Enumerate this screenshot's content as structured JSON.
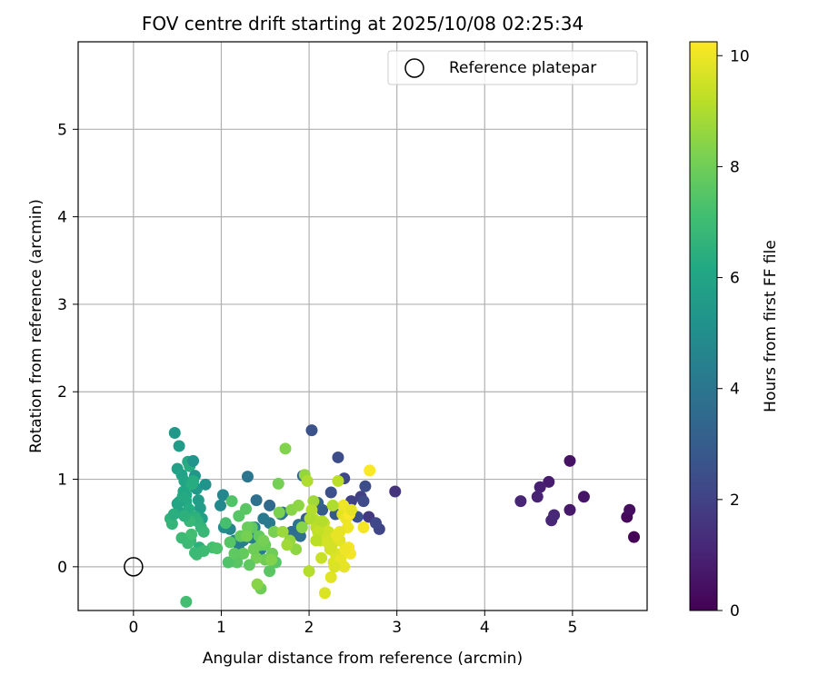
{
  "chart_data": {
    "type": "scatter",
    "title": "FOV centre drift starting at 2025/10/08 02:25:34",
    "xlabel": "Angular distance from reference (arcmin)",
    "ylabel": "Rotation from reference (arcmin)",
    "xlim": [
      -0.63,
      5.85
    ],
    "ylim": [
      -0.5,
      6.0
    ],
    "xticks": [
      0,
      1,
      2,
      3,
      4,
      5
    ],
    "yticks": [
      0,
      1,
      2,
      3,
      4,
      5
    ],
    "grid": true,
    "legend": {
      "placement": "top-right",
      "entries": [
        "Reference platepar"
      ]
    },
    "reference_point": {
      "label": "Reference platepar",
      "x": 0,
      "y": 0
    },
    "colorbar": {
      "label": "Hours from first FF file",
      "min": 0,
      "max": 10.25,
      "ticks": [
        0,
        2,
        4,
        6,
        8,
        10
      ],
      "colormap": "viridis"
    },
    "series": [
      {
        "name": "FOV centre drift",
        "x": [
          5.7,
          5.62,
          5.65,
          4.97,
          5.13,
          4.97,
          4.73,
          4.63,
          4.6,
          4.41,
          4.76,
          4.79,
          2.98,
          2.68,
          2.59,
          2.48,
          2.4,
          2.33,
          2.25,
          2.62,
          2.03,
          2.8,
          2.76,
          2.64,
          2.55,
          2.3,
          2.15,
          1.97,
          1.93,
          2.1,
          1.55,
          1.8,
          1.68,
          1.4,
          1.3,
          1.55,
          1.25,
          1.45,
          1.38,
          1.1,
          1.02,
          0.99,
          1.03,
          1.15,
          1.2,
          1.35,
          1.48,
          1.6,
          1.7,
          1.88,
          1.9,
          0.47,
          0.5,
          0.52,
          0.55,
          0.58,
          0.6,
          0.62,
          0.64,
          0.66,
          0.68,
          0.7,
          0.72,
          0.74,
          0.76,
          0.78,
          0.5,
          0.53,
          0.57,
          0.6,
          0.63,
          0.67,
          0.7,
          0.73,
          0.77,
          0.8,
          0.82,
          0.55,
          0.65,
          0.75,
          0.42,
          0.44,
          0.62,
          0.72,
          0.6,
          0.68,
          0.64,
          0.9,
          0.95,
          0.8,
          0.7,
          0.66,
          0.58,
          0.52,
          0.56,
          0.46,
          1.05,
          1.12,
          1.2,
          1.28,
          1.35,
          1.43,
          1.5,
          1.58,
          1.65,
          1.73,
          1.8,
          1.88,
          1.95,
          2.05,
          1.62,
          1.55,
          1.25,
          1.45,
          1.5,
          1.4,
          1.32,
          1.18,
          1.08,
          1.6,
          1.48,
          1.37,
          1.7,
          1.78,
          1.85,
          1.92,
          1.15,
          1.22,
          1.3,
          1.45,
          1.66,
          1.57,
          1.41,
          1.29,
          1.1,
          1.75,
          1.98,
          2.03,
          2.08,
          2.13,
          2.17,
          2.22,
          2.26,
          2.3,
          2.35,
          2.4,
          2.44,
          2.47,
          2.38,
          2.28,
          2.2,
          2.14,
          2.05,
          2.0,
          2.1,
          2.24,
          2.33,
          2.42,
          2.45,
          2.36,
          2.18,
          2.25,
          2.31,
          2.39,
          2.46,
          2.21,
          2.29,
          2.69,
          2.62,
          2.35,
          2.27,
          2.15,
          2.08,
          2.01,
          2.48,
          2.41
        ],
        "y": [
          0.34,
          0.57,
          0.65,
          1.21,
          0.8,
          0.65,
          0.97,
          0.91,
          0.8,
          0.75,
          0.53,
          0.59,
          0.86,
          0.57,
          0.8,
          0.75,
          1.01,
          1.25,
          0.85,
          0.75,
          1.56,
          0.43,
          0.5,
          0.92,
          0.57,
          0.6,
          0.65,
          0.55,
          1.04,
          0.73,
          0.7,
          0.4,
          0.6,
          0.76,
          1.03,
          0.5,
          0.3,
          0.2,
          0.45,
          0.43,
          0.82,
          0.7,
          0.45,
          0.3,
          0.25,
          0.33,
          0.55,
          0.4,
          0.62,
          0.48,
          0.35,
          1.53,
          1.12,
          1.38,
          1.05,
          0.98,
          0.82,
          1.2,
          1.15,
          0.92,
          1.21,
          1.04,
          0.89,
          0.76,
          0.67,
          0.55,
          0.72,
          0.62,
          0.86,
          0.75,
          0.66,
          0.95,
          0.57,
          0.52,
          0.45,
          0.4,
          0.94,
          0.33,
          0.3,
          0.22,
          0.55,
          0.49,
          0.27,
          0.14,
          -0.4,
          0.98,
          0.52,
          0.22,
          0.21,
          0.18,
          0.16,
          0.37,
          0.58,
          0.74,
          0.8,
          0.6,
          0.5,
          0.75,
          0.58,
          0.66,
          0.45,
          0.35,
          0.25,
          0.15,
          0.95,
          1.35,
          0.65,
          0.7,
          1.05,
          0.75,
          0.05,
          -0.05,
          0.15,
          0.25,
          0.08,
          0.1,
          0.02,
          0.05,
          0.05,
          0.4,
          0.3,
          0.2,
          0.4,
          0.3,
          0.2,
          0.45,
          0.15,
          0.35,
          0.45,
          -0.25,
          0.62,
          0.08,
          -0.2,
          0.35,
          0.28,
          0.25,
          0.98,
          0.65,
          0.45,
          0.3,
          0.5,
          0.4,
          0.25,
          0.15,
          0.3,
          0.0,
          0.45,
          0.15,
          0.6,
          0.05,
          0.35,
          0.1,
          0.55,
          -0.05,
          0.4,
          0.2,
          0.98,
          0.55,
          0.22,
          0.08,
          -0.3,
          -0.12,
          0.35,
          0.7,
          0.6,
          0.28,
          0.0,
          1.1,
          0.45,
          0.4,
          0.7,
          0.52,
          0.3,
          0.55,
          0.65,
          0.2
        ],
        "hours": [
          0.1,
          0.2,
          0.35,
          0.5,
          0.6,
          0.7,
          0.8,
          0.9,
          1.0,
          1.05,
          1.1,
          1.2,
          1.5,
          1.7,
          1.9,
          2.0,
          2.2,
          2.4,
          2.5,
          2.3,
          2.6,
          2.1,
          2.2,
          2.4,
          2.6,
          2.8,
          2.9,
          3.0,
          3.3,
          3.2,
          3.5,
          3.6,
          3.7,
          3.8,
          4.0,
          4.2,
          4.3,
          4.4,
          4.5,
          4.6,
          4.7,
          4.8,
          4.9,
          4.5,
          4.4,
          4.3,
          4.2,
          4.1,
          4.0,
          3.9,
          3.8,
          5.5,
          5.8,
          5.6,
          5.9,
          6.0,
          6.1,
          6.2,
          6.3,
          6.4,
          5.3,
          5.4,
          5.5,
          5.6,
          5.7,
          5.8,
          5.9,
          6.0,
          6.1,
          6.2,
          6.3,
          6.4,
          6.5,
          6.6,
          6.7,
          6.8,
          5.2,
          6.9,
          6.8,
          6.5,
          6.6,
          6.7,
          6.9,
          7.0,
          7.1,
          6.3,
          6.8,
          7.2,
          7.3,
          7.0,
          6.9,
          7.1,
          6.5,
          6.0,
          6.2,
          6.4,
          7.2,
          7.4,
          7.5,
          7.6,
          7.7,
          7.8,
          7.9,
          8.0,
          8.1,
          8.3,
          8.4,
          8.5,
          8.6,
          8.8,
          7.5,
          7.6,
          7.8,
          7.9,
          8.0,
          8.1,
          7.7,
          7.6,
          7.4,
          8.2,
          8.1,
          8.0,
          8.7,
          8.6,
          8.5,
          8.4,
          7.7,
          7.8,
          7.9,
          8.0,
          8.2,
          8.3,
          8.4,
          8.1,
          7.5,
          8.8,
          9.0,
          9.1,
          9.2,
          9.3,
          9.4,
          9.5,
          9.6,
          9.7,
          9.8,
          9.9,
          10.0,
          10.1,
          9.8,
          9.7,
          9.5,
          9.4,
          9.2,
          9.1,
          9.3,
          9.6,
          9.2,
          10.0,
          10.1,
          9.9,
          9.7,
          9.8,
          9.9,
          10.0,
          10.2,
          9.6,
          9.7,
          10.2,
          10.1,
          9.9,
          9.0,
          9.1,
          9.2,
          9.0,
          9.9,
          10.0
        ]
      }
    ]
  }
}
